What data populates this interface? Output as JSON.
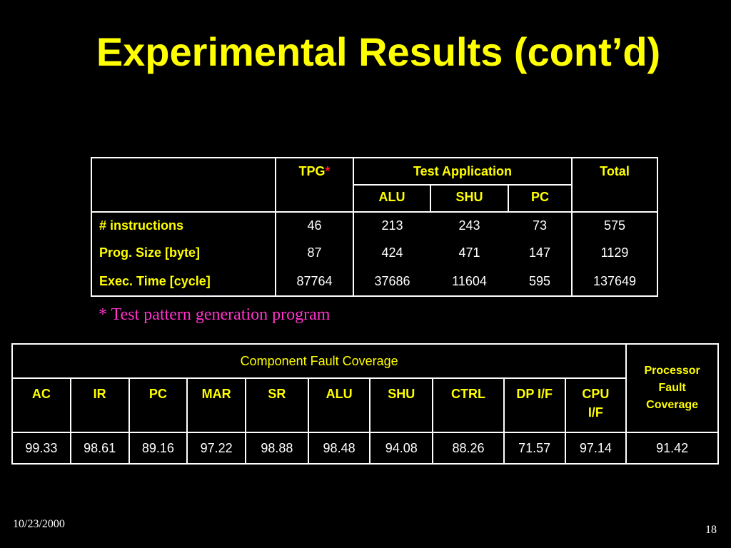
{
  "slide": {
    "title": "Experimental Results (cont’d)",
    "footnote": "* Test pattern generation program",
    "date": "10/23/2000",
    "page_number": "18"
  },
  "table1": {
    "headers": {
      "tpg": "TPG",
      "tpg_star": "*",
      "test_application": "Test Application",
      "total": "Total",
      "alu": "ALU",
      "shu": "SHU",
      "pc": "PC"
    },
    "rows": [
      {
        "label": "# instructions",
        "tpg": "46",
        "alu": "213",
        "shu": "243",
        "pc": "73",
        "total": "575"
      },
      {
        "label": "Prog. Size [byte]",
        "tpg": "87",
        "alu": "424",
        "shu": "471",
        "pc": "147",
        "total": "1129"
      },
      {
        "label": "Exec. Time [cycle]",
        "tpg": "87764",
        "alu": "37686",
        "shu": "11604",
        "pc": "595",
        "total": "137649"
      }
    ]
  },
  "table2": {
    "component_header": "Component Fault Coverage",
    "processor_header": [
      "Processor",
      "Fault",
      "Coverage"
    ],
    "components": [
      "AC",
      "IR",
      "PC",
      "MAR",
      "SR",
      "ALU",
      "SHU",
      "CTRL",
      "DP I/F"
    ],
    "cpu_if": [
      "CPU",
      "I/F"
    ],
    "values": [
      "99.33",
      "98.61",
      "89.16",
      "97.22",
      "98.88",
      "98.48",
      "94.08",
      "88.26",
      "71.57",
      "97.14"
    ],
    "processor_value": "91.42"
  },
  "colors": {
    "background": "#000000",
    "title": "#ffff00",
    "header_text": "#ffff00",
    "body_text": "#ffffff",
    "footnote": "#ff33cc",
    "star": "#ff1a1a"
  }
}
